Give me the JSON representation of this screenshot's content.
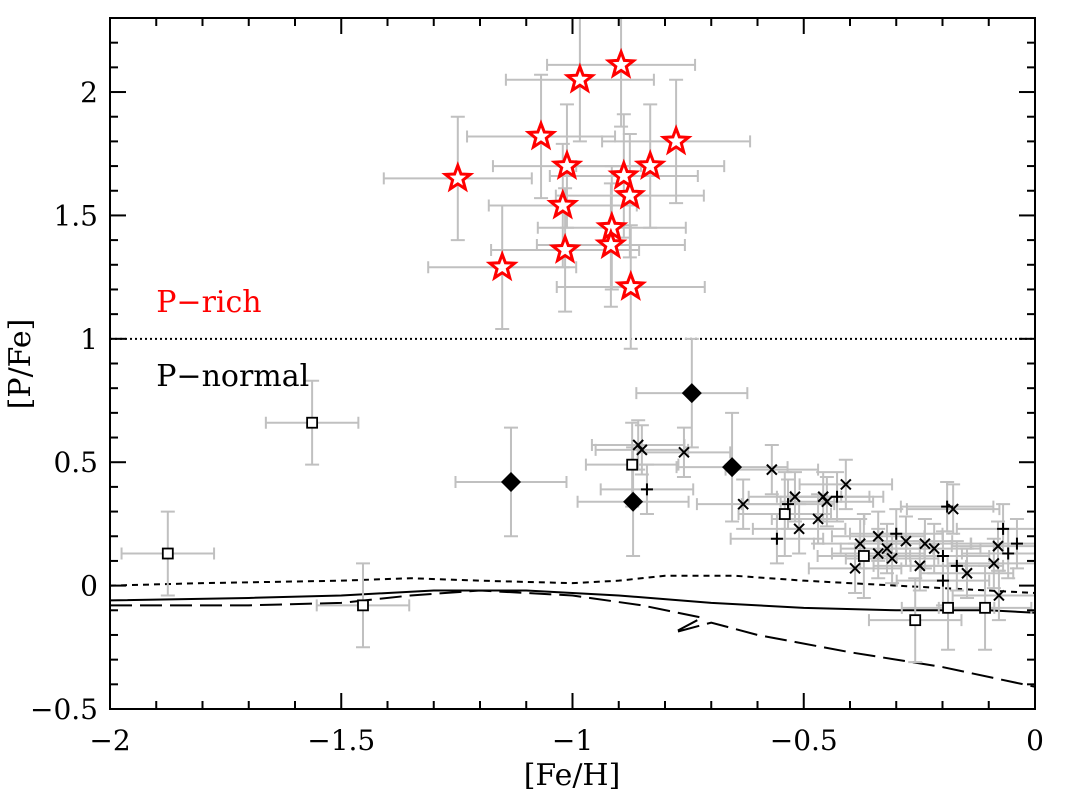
{
  "chart_data": {
    "type": "scatter",
    "xlabel": "[Fe/H]",
    "ylabel": "[P/Fe]",
    "xlim": [
      -2,
      0
    ],
    "ylim": [
      -0.5,
      2.3
    ],
    "xticks": [
      "-2",
      "-1.5",
      "-1",
      "-0.5",
      "0"
    ],
    "xtick_values": [
      -2,
      -1.5,
      -1,
      -0.5,
      0
    ],
    "yticks": [
      "-0.5",
      "0",
      "0.5",
      "1",
      "1.5",
      "2"
    ],
    "ytick_values": [
      -0.5,
      0,
      0.5,
      1,
      1.5,
      2
    ],
    "threshold": {
      "y": 1,
      "style": "dotted"
    },
    "annotations": [
      {
        "text": "P−rich",
        "x": -1.9,
        "y": 1.15,
        "color": "#ff0000"
      },
      {
        "text": "P−normal",
        "x": -1.9,
        "y": 0.85,
        "color": "#000000"
      }
    ],
    "errorbar_color": "#c0c0c0",
    "series": [
      {
        "name": "P-rich stars",
        "marker": "star",
        "color": "#ff0000",
        "xerr": 0.16,
        "yerr": 0.25,
        "points": [
          [
            -0.895,
            2.11
          ],
          [
            -0.984,
            2.05
          ],
          [
            -1.068,
            1.82
          ],
          [
            -0.776,
            1.8
          ],
          [
            -1.248,
            1.65
          ],
          [
            -1.012,
            1.7
          ],
          [
            -0.832,
            1.7
          ],
          [
            -0.889,
            1.66
          ],
          [
            -0.876,
            1.58
          ],
          [
            -1.021,
            1.54
          ],
          [
            -0.915,
            1.45
          ],
          [
            -1.016,
            1.36
          ],
          [
            -0.917,
            1.38
          ],
          [
            -1.152,
            1.29
          ],
          [
            -0.874,
            1.21
          ]
        ]
      },
      {
        "name": "diamonds",
        "marker": "diamond",
        "color": "#000000",
        "xerr": 0.12,
        "yerr": 0.22,
        "points": [
          [
            -0.742,
            0.78
          ],
          [
            -1.133,
            0.42
          ],
          [
            -0.869,
            0.34
          ],
          [
            -0.655,
            0.48
          ]
        ]
      },
      {
        "name": "squares",
        "marker": "square",
        "color": "#000000",
        "xerr": 0.1,
        "yerr": 0.17,
        "points": [
          [
            -1.563,
            0.66
          ],
          [
            -1.875,
            0.13
          ],
          [
            -1.453,
            -0.08
          ],
          [
            -0.871,
            0.49
          ],
          [
            -0.541,
            0.29
          ],
          [
            -0.37,
            0.12
          ],
          [
            -0.188,
            -0.09
          ],
          [
            -0.108,
            -0.09
          ],
          [
            -0.259,
            -0.14
          ]
        ]
      },
      {
        "name": "crosses",
        "marker": "x",
        "color": "#000000",
        "xerr": 0.1,
        "yerr": 0.1,
        "points": [
          [
            -0.858,
            0.57
          ],
          [
            -0.85,
            0.55
          ],
          [
            -0.759,
            0.54
          ],
          [
            -0.569,
            0.47
          ],
          [
            -0.409,
            0.41
          ],
          [
            -0.519,
            0.36
          ],
          [
            -0.458,
            0.36
          ],
          [
            -0.45,
            0.34
          ],
          [
            -0.631,
            0.33
          ],
          [
            -0.177,
            0.31
          ],
          [
            -0.469,
            0.27
          ],
          [
            -0.51,
            0.23
          ],
          [
            -0.339,
            0.2
          ],
          [
            -0.279,
            0.18
          ],
          [
            -0.378,
            0.17
          ],
          [
            -0.238,
            0.17
          ],
          [
            -0.218,
            0.15
          ],
          [
            -0.32,
            0.15
          ],
          [
            -0.08,
            0.16
          ],
          [
            -0.339,
            0.13
          ],
          [
            -0.309,
            0.11
          ],
          [
            -0.249,
            0.08
          ],
          [
            -0.389,
            0.07
          ],
          [
            -0.147,
            0.05
          ],
          [
            -0.089,
            0.09
          ],
          [
            -0.078,
            -0.04
          ]
        ]
      },
      {
        "name": "plus",
        "marker": "plus",
        "color": "#000000",
        "xerr": 0.1,
        "yerr": 0.1,
        "points": [
          [
            -0.839,
            0.39
          ],
          [
            -0.428,
            0.36
          ],
          [
            -0.534,
            0.33
          ],
          [
            -0.19,
            0.32
          ],
          [
            -0.558,
            0.19
          ],
          [
            -0.3,
            0.21
          ],
          [
            -0.069,
            0.23
          ],
          [
            -0.039,
            0.17
          ],
          [
            -0.058,
            0.13
          ],
          [
            -0.199,
            0.12
          ],
          [
            -0.169,
            0.08
          ],
          [
            -0.199,
            0.02
          ]
        ]
      }
    ],
    "model_lines": [
      {
        "name": "solid",
        "dash": "none",
        "points": [
          [
            -2,
            -0.06
          ],
          [
            -1.7,
            -0.05
          ],
          [
            -1.5,
            -0.04
          ],
          [
            -1.3,
            -0.02
          ],
          [
            -1.1,
            -0.02
          ],
          [
            -0.9,
            -0.04
          ],
          [
            -0.7,
            -0.07
          ],
          [
            -0.5,
            -0.09
          ],
          [
            -0.3,
            -0.1
          ],
          [
            -0.1,
            -0.1
          ],
          [
            0,
            -0.11
          ]
        ]
      },
      {
        "name": "short-dashed",
        "dash": "6,5",
        "points": [
          [
            -2,
            0.0
          ],
          [
            -1.8,
            0.01
          ],
          [
            -1.5,
            0.02
          ],
          [
            -1.35,
            0.03
          ],
          [
            -1.2,
            0.02
          ],
          [
            -1.0,
            0.01
          ],
          [
            -0.9,
            0.02
          ],
          [
            -0.8,
            0.04
          ],
          [
            -0.65,
            0.04
          ],
          [
            -0.5,
            0.02
          ],
          [
            -0.3,
            0.0
          ],
          [
            -0.1,
            -0.02
          ],
          [
            0,
            -0.03
          ]
        ]
      },
      {
        "name": "long-dashed",
        "dash": "22,8",
        "points": [
          [
            -2,
            -0.08
          ],
          [
            -1.7,
            -0.08
          ],
          [
            -1.5,
            -0.07
          ],
          [
            -1.35,
            -0.04
          ],
          [
            -1.2,
            -0.02
          ],
          [
            -1.0,
            -0.04
          ],
          [
            -0.85,
            -0.08
          ],
          [
            -0.72,
            -0.13
          ],
          [
            -0.78,
            -0.19
          ],
          [
            -0.7,
            -0.15
          ],
          [
            -0.6,
            -0.2
          ],
          [
            -0.4,
            -0.27
          ],
          [
            -0.2,
            -0.33
          ],
          [
            0,
            -0.41
          ]
        ]
      }
    ]
  }
}
